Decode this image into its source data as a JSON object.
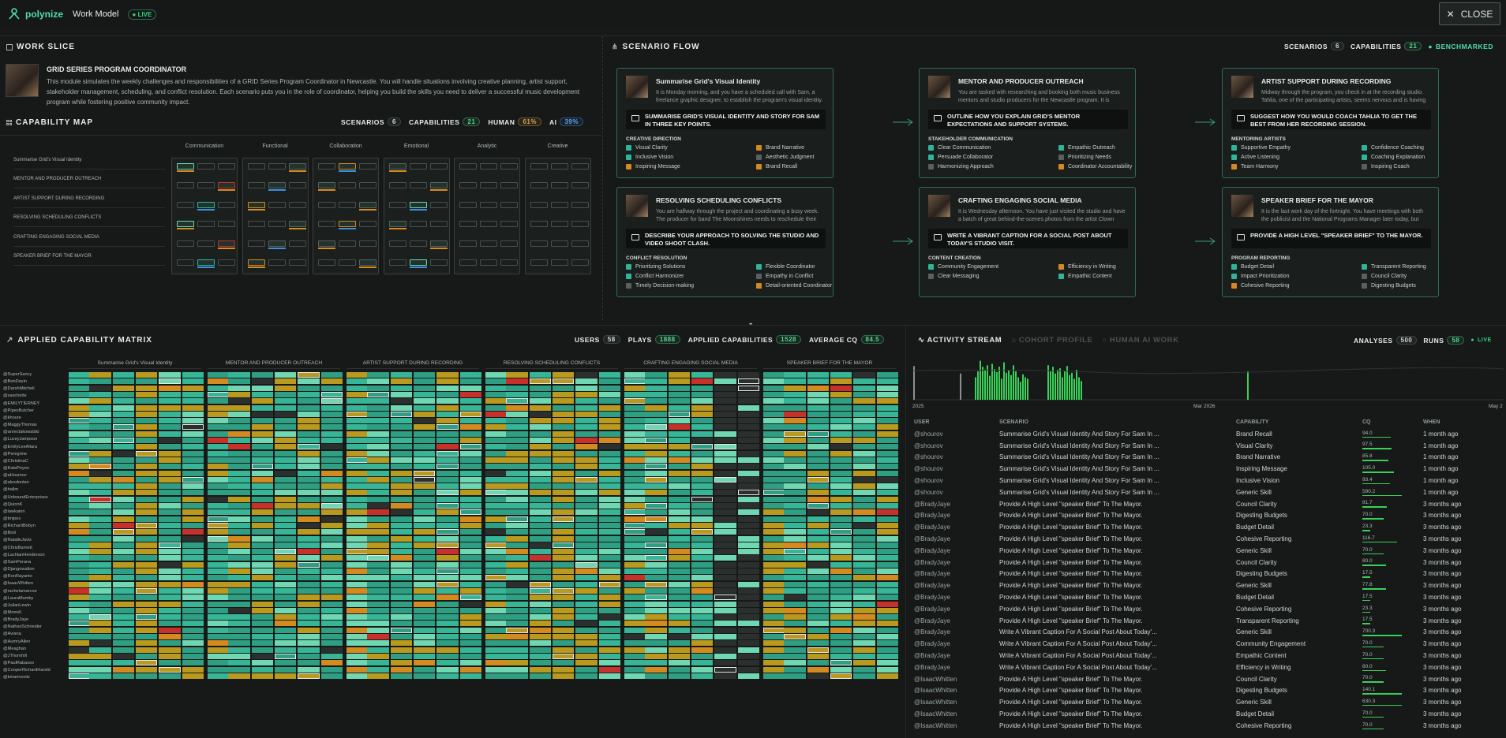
{
  "header": {
    "brand": "polynize",
    "model": "Work Model",
    "live": "LIVE",
    "close": "CLOSE"
  },
  "work_slice": {
    "title": "WORK SLICE",
    "module_title": "GRID SERIES PROGRAM COORDINATOR",
    "description": "This module simulates the weekly challenges and responsibilities of a GRID Series Program Coordinator in Newcastle. You will handle situations involving creative planning, artist support, stakeholder management, scheduling, and conflict resolution. Each scenario puts you in the role of coordinator, helping you build the skills you need to deliver a successful music development program while fostering positive community impact."
  },
  "capability_map": {
    "title": "CAPABILITY MAP",
    "stats": {
      "scenarios_label": "SCENARIOS",
      "scenarios": "6",
      "capabilities_label": "CAPABILITIES",
      "capabilities": "21",
      "human_label": "HUMAN",
      "human": "61%",
      "ai_label": "AI",
      "ai": "39%"
    },
    "columns": [
      "Communication",
      "Functional",
      "Collaboration",
      "Emotional",
      "Analytic",
      "Creative"
    ],
    "rows": [
      "Summarise Grid's Visual Identity",
      "MENTOR AND PRODUCER OUTREACH",
      "ARTIST SUPPORT DURING RECORDING",
      "RESOLVING SCHEDULING CONFLICTS",
      "CRAFTING ENGAGING SOCIAL MEDIA",
      "SPEAKER BRIEF FOR THE MAYOR"
    ]
  },
  "scenario_flow": {
    "title": "SCENARIO FLOW",
    "stats": {
      "scenarios_label": "SCENARIOS",
      "scenarios": "6",
      "capabilities_label": "CAPABILITIES",
      "capabilities": "21",
      "benchmarked": "BENCHMARKED"
    },
    "cards": [
      {
        "title": "Summarise Grid's Visual Identity",
        "desc": "It is Monday morning, and you have a scheduled call with Sam, a freelance graphic designer, to establish the program's visual identity. Sam asks a lot...",
        "question": "SUMMARISE GRID'S VISUAL IDENTITY AND STORY FOR SAM IN THREE KEY POINTS.",
        "section": "CREATIVE DIRECTION",
        "skills": [
          "Visual Clarity",
          "Brand Narrative",
          "Inclusive Vision",
          "Aesthetic Judgment",
          "Inspiring Message",
          "Brand Recall"
        ]
      },
      {
        "title": "MENTOR AND PRODUCER OUTREACH",
        "desc": "You are tasked with researching and booking both music business mentors and studio producers for the Newcastle program. It is important that thes...",
        "question": "OUTLINE HOW YOU EXPLAIN GRID'S MENTOR EXPECTATIONS AND SUPPORT SYSTEMS.",
        "section": "STAKEHOLDER COMMUNICATION",
        "skills": [
          "Clear Communication",
          "Empathic Outreach",
          "Persuade Collaborator",
          "Prioritizing Needs",
          "Harmonizing Approach",
          "Coordinator Accountability"
        ]
      },
      {
        "title": "ARTIST SUPPORT DURING RECORDING",
        "desc": "Midway through the program, you check in at the recording studio. Tahlia, one of the participating artists, seems nervous and is having trouble...",
        "question": "SUGGEST HOW YOU WOULD COACH TAHLIA TO GET THE BEST FROM HER RECORDING SESSION.",
        "section": "MENTORING ARTISTS",
        "skills": [
          "Supportive Empathy",
          "Confidence Coaching",
          "Active Listening",
          "Coaching Explanation",
          "Team Harmony",
          "Inspiring Coach"
        ]
      },
      {
        "title": "RESOLVING SCHEDULING CONFLICTS",
        "desc": "You are halfway through the project and coordinating a busy week. The producer for band The Moonshines needs to reschedule their final studio...",
        "question": "DESCRIBE YOUR APPROACH TO SOLVING THE STUDIO AND VIDEO SHOOT CLASH.",
        "section": "CONFLICT RESOLUTION",
        "skills": [
          "Prioritizing Solutions",
          "Flexible Coordinator",
          "Conflict Harmonizer",
          "Empathy in Conflict",
          "Timely Decision-making",
          "Detail-oriented Coordinator"
        ]
      },
      {
        "title": "CRAFTING ENGAGING SOCIAL MEDIA",
        "desc": "It is Wednesday afternoon. You have just visited the studio and have a batch of great behind-the-scenes photos from the artist Clown Shoe...",
        "question": "WRITE A VIBRANT CAPTION FOR A SOCIAL POST ABOUT TODAY'S STUDIO VISIT.",
        "section": "CONTENT CREATION",
        "skills": [
          "Community Engagement",
          "Efficiency in Writing",
          "Clear Messaging",
          "Empathic Content"
        ]
      },
      {
        "title": "SPEAKER BRIEF FOR THE MAYOR",
        "desc": "It is the last work day of the fortnight. You have meetings with both the publicist and the National Programs Manager later today, but before that,...",
        "question": "PROVIDE A HIGH LEVEL \"SPEAKER BRIEF\" TO THE MAYOR.",
        "section": "PROGRAM REPORTING",
        "skills": [
          "Budget Detail",
          "Transparent Reporting",
          "Impact Prioritization",
          "Council Clarity",
          "Cohesive Reporting",
          "Digesting Budgets"
        ]
      }
    ]
  },
  "matrix": {
    "title": "APPLIED CAPABILITY MATRIX",
    "stats": {
      "users_label": "USERS",
      "users": "58",
      "plays_label": "PLAYS",
      "plays": "1888",
      "applied_label": "APPLIED CAPABILITIES",
      "applied": "1528",
      "avg_label": "AVERAGE CQ",
      "avg": "84.5"
    },
    "columns": [
      "Summarise Grid's Visual Identity",
      "MENTOR AND PRODUCER OUTREACH",
      "ARTIST SUPPORT DURING RECORDING",
      "RESOLVING SCHEDULING CONFLICTS",
      "CRAFTING ENGAGING SOCIAL MEDIA",
      "SPEAKER BRIEF FOR THE MAYOR"
    ],
    "users": [
      "@SuperSancy",
      "@BenDavin",
      "@DarshMitchell",
      "@saschette",
      "@EMILYTIERNEY",
      "@PipesButcher",
      "@khoure",
      "@MaggyThomas",
      "@anrectakowalski",
      "@LuceyJampson",
      "@EmilyLeeAllara",
      "@Peregrine",
      "@ChristinaC",
      "@KatePeyen",
      "@aHoumov",
      "@alexdonlan",
      "@hallm",
      "@UnboundEnterprises",
      "@QuinnK",
      "@lawkainn",
      "@bnipes",
      "@RichardBobyn",
      "@Bisli",
      "@NatalieJavis",
      "@ChrisBarnett",
      "@LachlanHenderson",
      "@SamPerana",
      "@Djangowalton",
      "@RonRayanto",
      "@IsaacWhitten",
      "@rachelamarcoe",
      "@LauraMumby",
      "@JulianLewin",
      "@Morrell",
      "@BradyJaye",
      "@NathanSchneider",
      "@Aviana",
      "@AumryAllen",
      "@Meaghan",
      "@JThornhill",
      "@PaulRabasso",
      "@CooperRichardHarold",
      "@kmarinovitz"
    ]
  },
  "activity": {
    "tab_active": "ACTIVITY STREAM",
    "tab_cohort": "COHORT PROFILE",
    "tab_human_ai": "HUMAN AI WORK",
    "stats": {
      "analyses_label": "ANALYSES",
      "analyses": "500",
      "runs_label": "RUNS",
      "runs": "58",
      "live": "LIVE"
    },
    "timeline_labels": [
      "2025",
      "Mar 2026",
      "May 2"
    ],
    "columns": [
      "USER",
      "SCENARIO",
      "CAPABILITY",
      "CQ",
      "WHEN"
    ],
    "rows": [
      {
        "user": "@shourov",
        "scenario": "Summarise Grid's Visual Identity And Story For Sam In ...",
        "capability": "Brand Recall",
        "cq": "94.0",
        "when": "1 month ago"
      },
      {
        "user": "@shourov",
        "scenario": "Summarise Grid's Visual Identity And Story For Sam In ...",
        "capability": "Visual Clarity",
        "cq": "97.5",
        "when": "1 month ago"
      },
      {
        "user": "@shourov",
        "scenario": "Summarise Grid's Visual Identity And Story For Sam In ...",
        "capability": "Brand Narrative",
        "cq": "85.8",
        "when": "1 month ago"
      },
      {
        "user": "@shourov",
        "scenario": "Summarise Grid's Visual Identity And Story For Sam In ...",
        "capability": "Inspiring Message",
        "cq": "105.0",
        "when": "1 month ago"
      },
      {
        "user": "@shourov",
        "scenario": "Summarise Grid's Visual Identity And Story For Sam In ...",
        "capability": "Inclusive Vision",
        "cq": "93.4",
        "when": "1 month ago"
      },
      {
        "user": "@shourov",
        "scenario": "Summarise Grid's Visual Identity And Story For Sam In ...",
        "capability": "Generic Skill",
        "cq": "590.2",
        "when": "1 month ago"
      },
      {
        "user": "@BradyJaye",
        "scenario": "Provide A High Level \"speaker Brief\" To The Mayor.",
        "capability": "Council Clarity",
        "cq": "81.7",
        "when": "3 months ago"
      },
      {
        "user": "@BradyJaye",
        "scenario": "Provide A High Level \"speaker Brief\" To The Mayor.",
        "capability": "Digesting Budgets",
        "cq": "70.0",
        "when": "3 months ago"
      },
      {
        "user": "@BradyJaye",
        "scenario": "Provide A High Level \"speaker Brief\" To The Mayor.",
        "capability": "Budget Detail",
        "cq": "23.3",
        "when": "3 months ago"
      },
      {
        "user": "@BradyJaye",
        "scenario": "Provide A High Level \"speaker Brief\" To The Mayor.",
        "capability": "Cohesive Reporting",
        "cq": "116.7",
        "when": "3 months ago"
      },
      {
        "user": "@BradyJaye",
        "scenario": "Provide A High Level \"speaker Brief\" To The Mayor.",
        "capability": "Generic Skill",
        "cq": "70.0",
        "when": "3 months ago"
      },
      {
        "user": "@BradyJaye",
        "scenario": "Provide A High Level \"speaker Brief\" To The Mayor.",
        "capability": "Council Clarity",
        "cq": "80.0",
        "when": "3 months ago"
      },
      {
        "user": "@BradyJaye",
        "scenario": "Provide A High Level \"speaker Brief\" To The Mayor.",
        "capability": "Digesting Budgets",
        "cq": "17.5",
        "when": "3 months ago"
      },
      {
        "user": "@BradyJaye",
        "scenario": "Provide A High Level \"speaker Brief\" To The Mayor.",
        "capability": "Generic Skill",
        "cq": "77.8",
        "when": "3 months ago"
      },
      {
        "user": "@BradyJaye",
        "scenario": "Provide A High Level \"speaker Brief\" To The Mayor.",
        "capability": "Budget Detail",
        "cq": "17.5",
        "when": "3 months ago"
      },
      {
        "user": "@BradyJaye",
        "scenario": "Provide A High Level \"speaker Brief\" To The Mayor.",
        "capability": "Cohesive Reporting",
        "cq": "23.3",
        "when": "3 months ago"
      },
      {
        "user": "@BradyJaye",
        "scenario": "Provide A High Level \"speaker Brief\" To The Mayor.",
        "capability": "Transparent Reporting",
        "cq": "17.5",
        "when": "3 months ago"
      },
      {
        "user": "@BradyJaye",
        "scenario": "Write A Vibrant Caption For A Social Post About Today'...",
        "capability": "Generic Skill",
        "cq": "700.3",
        "when": "3 months ago"
      },
      {
        "user": "@BradyJaye",
        "scenario": "Write A Vibrant Caption For A Social Post About Today'...",
        "capability": "Community Engagement",
        "cq": "70.0",
        "when": "3 months ago"
      },
      {
        "user": "@BradyJaye",
        "scenario": "Write A Vibrant Caption For A Social Post About Today'...",
        "capability": "Empathic Content",
        "cq": "70.0",
        "when": "3 months ago"
      },
      {
        "user": "@BradyJaye",
        "scenario": "Write A Vibrant Caption For A Social Post About Today'...",
        "capability": "Efficiency in Writing",
        "cq": "80.0",
        "when": "3 months ago"
      },
      {
        "user": "@IsaacWhitten",
        "scenario": "Provide A High Level \"speaker Brief\" To The Mayor.",
        "capability": "Council Clarity",
        "cq": "70.0",
        "when": "3 months ago"
      },
      {
        "user": "@IsaacWhitten",
        "scenario": "Provide A High Level \"speaker Brief\" To The Mayor.",
        "capability": "Digesting Budgets",
        "cq": "140.1",
        "when": "3 months ago"
      },
      {
        "user": "@IsaacWhitten",
        "scenario": "Provide A High Level \"speaker Brief\" To The Mayor.",
        "capability": "Generic Skill",
        "cq": "630.3",
        "when": "3 months ago"
      },
      {
        "user": "@IsaacWhitten",
        "scenario": "Provide A High Level \"speaker Brief\" To The Mayor.",
        "capability": "Budget Detail",
        "cq": "70.0",
        "when": "3 months ago"
      },
      {
        "user": "@IsaacWhitten",
        "scenario": "Provide A High Level \"speaker Brief\" To The Mayor.",
        "capability": "Cohesive Reporting",
        "cq": "70.0",
        "when": "3 months ago"
      }
    ]
  },
  "colors": {
    "accent": "#4fdcb0",
    "live": "#37d37a",
    "teal": "#2fb59a",
    "mint": "#6fd7b2",
    "mustard": "#c8a21c",
    "orange": "#d58a1f",
    "red": "#c8312a",
    "grey": "#5a605d"
  }
}
